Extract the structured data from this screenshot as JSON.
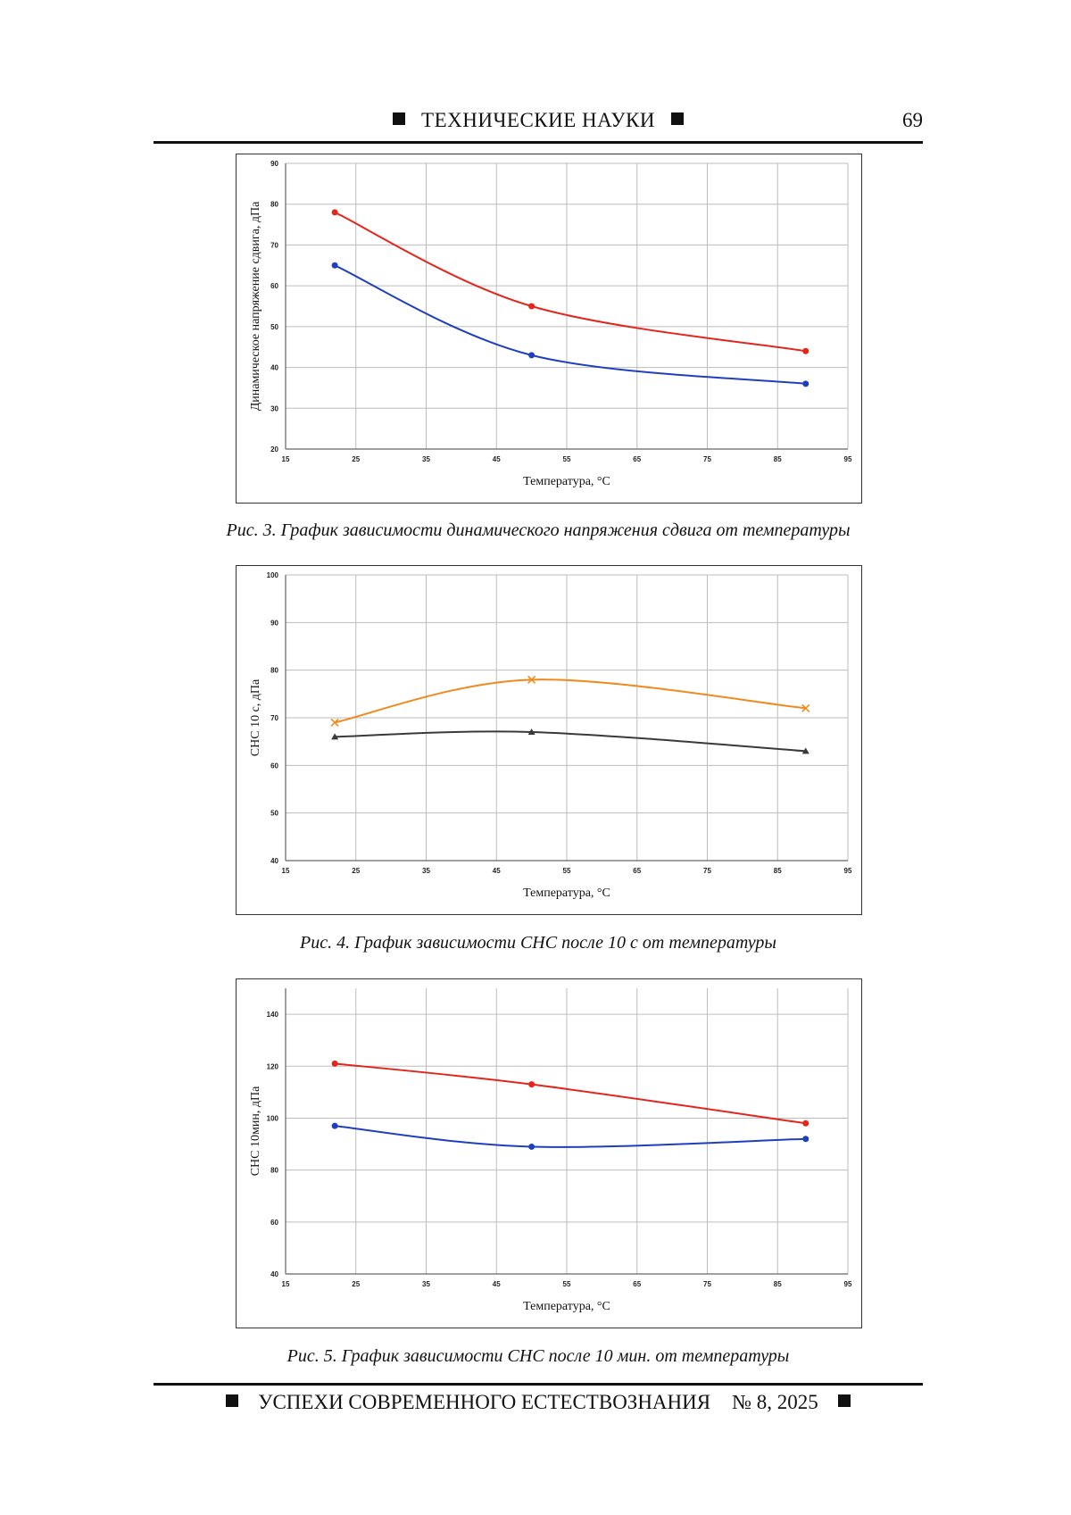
{
  "header": {
    "title": "ТЕХНИЧЕСКИЕ НАУКИ",
    "page_number": "69"
  },
  "footer": {
    "journal": "УСПЕХИ СОВРЕМЕННОГО ЕСТЕСТВОЗНАНИЯ",
    "issue": "№ 8, 2025"
  },
  "figures": [
    {
      "caption": "Рис. 3. График зависимости динамического напряжения сдвига от температуры"
    },
    {
      "caption": "Рис. 4. График зависимости СНС после 10 с от температуры"
    },
    {
      "caption": "Рис. 5. График зависимости СНС после 10 мин. от температуры"
    }
  ],
  "chart_data": [
    {
      "type": "line",
      "xlabel": "Температура, °С",
      "ylabel": "Динамическое напряжение сдвига, дПа",
      "xlim": [
        15,
        95
      ],
      "ylim": [
        20,
        90
      ],
      "xticks": [
        15,
        25,
        35,
        45,
        55,
        65,
        75,
        85,
        95
      ],
      "yticks": [
        20,
        30,
        40,
        50,
        60,
        70,
        80,
        90
      ],
      "grid": true,
      "series": [
        {
          "color": "#e3261c",
          "marker": "circle",
          "x": [
            22,
            50,
            89
          ],
          "y": [
            78,
            55,
            44
          ]
        },
        {
          "color": "#1f3fbf",
          "marker": "circle",
          "x": [
            22,
            50,
            89
          ],
          "y": [
            65,
            43,
            36
          ]
        }
      ]
    },
    {
      "type": "line",
      "xlabel": "Температура, °С",
      "ylabel": "СНС 10 с, дПа",
      "xlim": [
        15,
        95
      ],
      "ylim": [
        40,
        100
      ],
      "xticks": [
        15,
        25,
        35,
        45,
        55,
        65,
        75,
        85,
        95
      ],
      "yticks": [
        40,
        50,
        60,
        70,
        80,
        90,
        100
      ],
      "grid": true,
      "series": [
        {
          "color": "#f08a1c",
          "marker": "x",
          "x": [
            22,
            50,
            89
          ],
          "y": [
            69,
            78,
            72
          ]
        },
        {
          "color": "#3a3a3a",
          "marker": "triangle",
          "x": [
            22,
            50,
            89
          ],
          "y": [
            66,
            67,
            63
          ]
        }
      ]
    },
    {
      "type": "line",
      "xlabel": "Температура, °С",
      "ylabel": "СНС 10мин, дПа",
      "xlim": [
        15,
        95
      ],
      "ylim": [
        40,
        150
      ],
      "xticks": [
        15,
        25,
        35,
        45,
        55,
        65,
        75,
        85,
        95
      ],
      "yticks": [
        40,
        60,
        80,
        100,
        120,
        140
      ],
      "grid": true,
      "series": [
        {
          "color": "#e3261c",
          "marker": "circle",
          "x": [
            22,
            50,
            89
          ],
          "y": [
            121,
            113,
            98
          ]
        },
        {
          "color": "#1f3fbf",
          "marker": "circle",
          "x": [
            22,
            50,
            89
          ],
          "y": [
            97,
            89,
            92
          ]
        }
      ]
    }
  ]
}
